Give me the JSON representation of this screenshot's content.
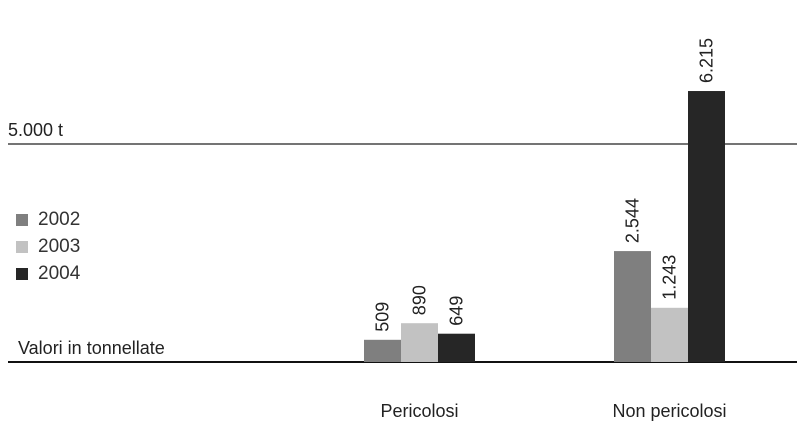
{
  "chart_data": {
    "type": "bar",
    "categories": [
      "Pericolosi",
      "Non pericolosi"
    ],
    "series": [
      {
        "name": "2002",
        "values": [
          509,
          2544
        ],
        "labels": [
          "509",
          "2.544"
        ],
        "color": "#7f7f7f"
      },
      {
        "name": "2003",
        "values": [
          890,
          1243
        ],
        "labels": [
          "890",
          "1.243"
        ],
        "color": "#c2c2c2"
      },
      {
        "name": "2004",
        "values": [
          649,
          6215
        ],
        "labels": [
          "649",
          "6.215"
        ],
        "color": "#262626"
      }
    ],
    "reference_line": {
      "value": 5000,
      "label": "5.000 t"
    },
    "unit_note": "Valori in tonnellate",
    "ylim": [
      0,
      6215
    ],
    "grid": false,
    "legend_position": "left"
  }
}
